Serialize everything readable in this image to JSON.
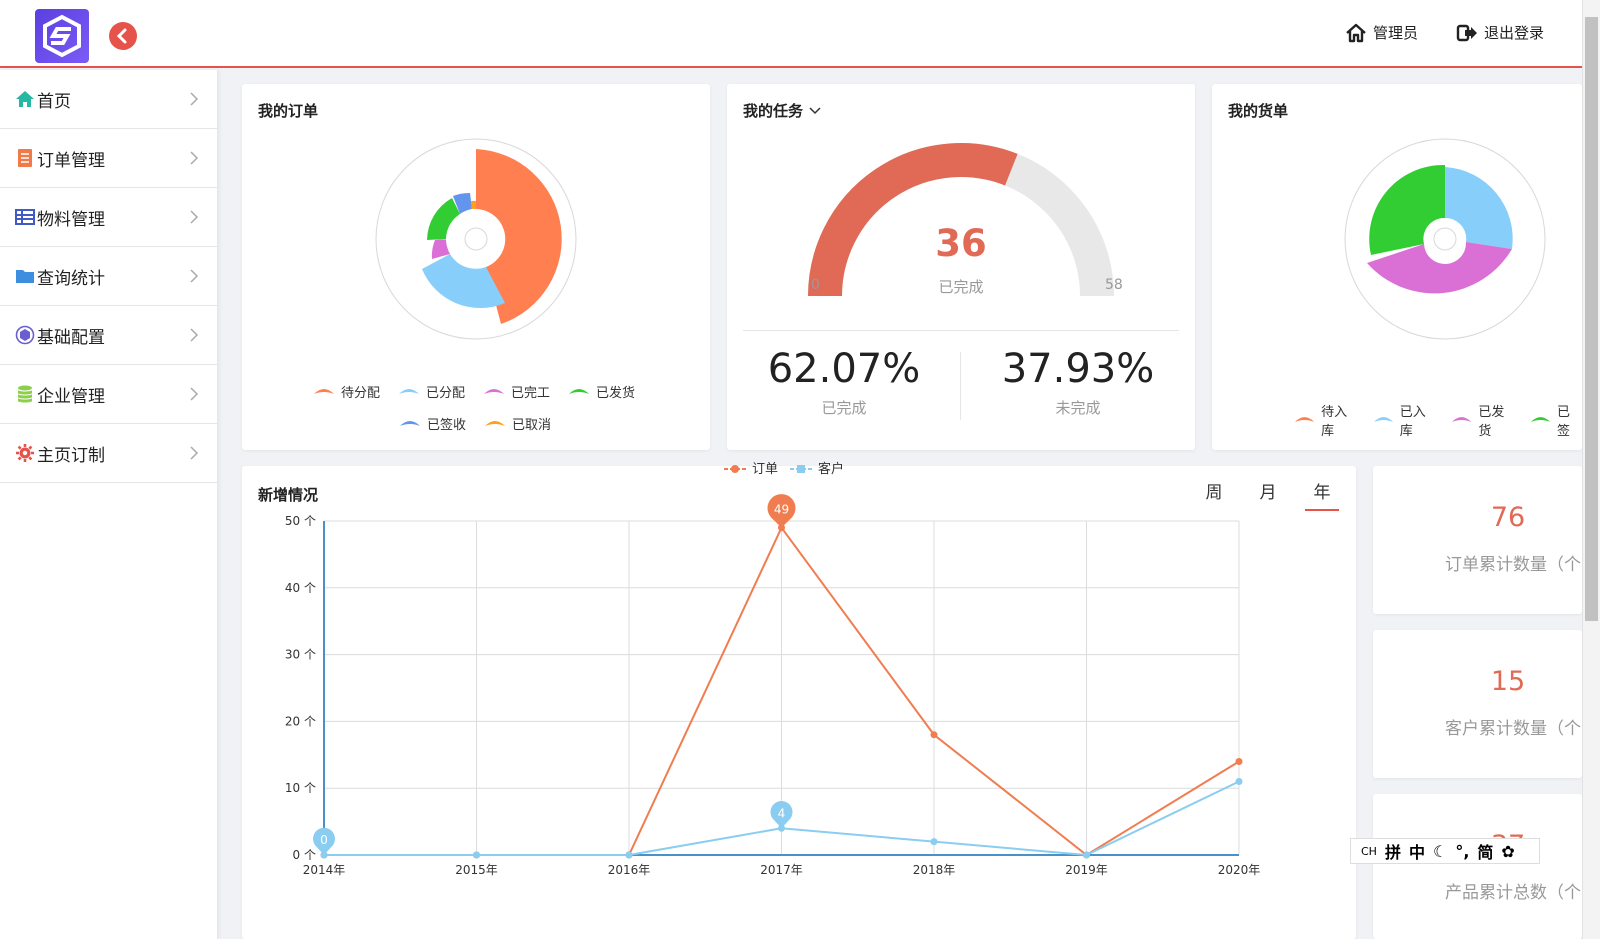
{
  "header": {
    "admin_label": "管理员",
    "logout_label": "退出登录"
  },
  "sidebar": {
    "items": [
      {
        "label": "首页",
        "icon": "home-icon",
        "color": "#26b8a4"
      },
      {
        "label": "订单管理",
        "icon": "document-icon",
        "color": "#f07a4a"
      },
      {
        "label": "物料管理",
        "icon": "table-icon",
        "color": "#4259c8"
      },
      {
        "label": "查询统计",
        "icon": "folder-icon",
        "color": "#3e8ee0"
      },
      {
        "label": "基础配置",
        "icon": "cube-icon",
        "color": "#6a5fd0"
      },
      {
        "label": "企业管理",
        "icon": "database-icon",
        "color": "#8ccf4a"
      },
      {
        "label": "主页订制",
        "icon": "gear-icon",
        "color": "#e5534b"
      }
    ]
  },
  "orders": {
    "title": "我的订单",
    "legend": [
      "待分配",
      "已分配",
      "已完工",
      "已发货",
      "已签收",
      "已取消"
    ],
    "colors": [
      "#ff7f50",
      "#87cefa",
      "#da70d6",
      "#32cd32",
      "#6495ed",
      "#ff9f1a"
    ]
  },
  "tasks": {
    "title": "我的任务",
    "completed_value": "36",
    "completed_label": "已完成",
    "gauge_min": "0",
    "gauge_max": "58",
    "completed_pct": "62.07%",
    "completed_pct_label": "已完成",
    "pending_pct": "37.93%",
    "pending_pct_label": "未完成",
    "gauge_value": 36,
    "gauge_total": 58
  },
  "shipments": {
    "title": "我的货单",
    "legend": [
      "待入库",
      "已入库",
      "已发货",
      "已签"
    ],
    "colors": [
      "#ff7f50",
      "#87cefa",
      "#da70d6",
      "#32cd32"
    ]
  },
  "growth": {
    "title": "新增情况",
    "tabs": [
      "周",
      "月",
      "年"
    ],
    "active_tab": 2
  },
  "stats": [
    {
      "value": "76",
      "label": "订单累计数量（个"
    },
    {
      "value": "15",
      "label": "客户累计数量（个"
    },
    {
      "value": "37",
      "label": "产品累计总数（个"
    }
  ],
  "ime": {
    "items": [
      "CH",
      "拼",
      "中",
      "简"
    ]
  },
  "chart_data": {
    "type": "line",
    "title": "",
    "x": [
      "2014年",
      "2015年",
      "2016年",
      "2017年",
      "2018年",
      "2019年",
      "2020年"
    ],
    "yticks": [
      "0 个",
      "10 个",
      "20 个",
      "30 个",
      "40 个",
      "50 个"
    ],
    "ylim": [
      0,
      50
    ],
    "grid": true,
    "legend_position": "top",
    "series": [
      {
        "name": "订单",
        "color": "#f07d4f",
        "values": [
          0,
          0,
          0,
          49,
          18,
          0,
          14
        ]
      },
      {
        "name": "客户",
        "color": "#8acdf0",
        "values": [
          0,
          0,
          0,
          4,
          2,
          0,
          11
        ]
      }
    ],
    "markers": [
      {
        "series": 0,
        "index": 3,
        "label": "49"
      },
      {
        "series": 1,
        "index": 3,
        "label": "4"
      },
      {
        "series": 1,
        "index": 0,
        "label": "0"
      }
    ]
  }
}
